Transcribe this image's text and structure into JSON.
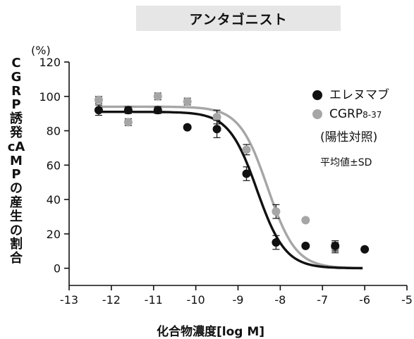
{
  "title": "アンタゴニスト",
  "unit_label": "(%)",
  "colors": {
    "series_1": "#111111",
    "series_2": "#a6a6a6",
    "title_bg": "#e6e6e6"
  },
  "chart_data": {
    "type": "scatter",
    "title": "アンタゴニスト",
    "xlabel": "化合物濃度[log M]",
    "ylabel": "CGRP誘発cAMPの産生の割合",
    "y_unit": "(%)",
    "xlim": [
      -13,
      -5
    ],
    "ylim": [
      -10,
      120
    ],
    "x_ticks": [
      -13,
      -12,
      -11,
      -10,
      -9,
      -8,
      -7,
      -6,
      -5
    ],
    "y_ticks": [
      0,
      20,
      40,
      60,
      80,
      100,
      120
    ],
    "grid": false,
    "legend_position": "right",
    "legend_note": "平均値±SD",
    "series": [
      {
        "name": "エレヌマブ",
        "color": "#111111",
        "x": [
          -12.3,
          -11.6,
          -10.9,
          -10.2,
          -9.5,
          -8.8,
          -8.1,
          -7.4,
          -6.7,
          -6.0
        ],
        "y": [
          92,
          92,
          92,
          82,
          81,
          55,
          15,
          13,
          13,
          11
        ],
        "err": [
          3,
          2,
          2,
          0,
          5,
          4,
          4,
          0,
          3,
          0
        ],
        "fit": {
          "bottom": 0,
          "top": 91,
          "log_ic50": -8.55,
          "hill": 1.3
        }
      },
      {
        "name": "CGRP8-37",
        "name_main": "CGRP",
        "name_sub": "8-37",
        "name_note": "(陽性対照)",
        "color": "#a6a6a6",
        "x": [
          -12.3,
          -11.6,
          -10.9,
          -10.2,
          -9.5,
          -8.8,
          -8.1,
          -7.4,
          -6.7
        ],
        "y": [
          98,
          85,
          100,
          97,
          88,
          69,
          33,
          28,
          12
        ],
        "err": [
          2,
          2,
          2,
          2,
          4,
          3,
          4,
          0,
          3
        ],
        "fit": {
          "bottom": 0,
          "top": 94,
          "log_ic50": -8.3,
          "hill": 1.3
        }
      }
    ]
  }
}
